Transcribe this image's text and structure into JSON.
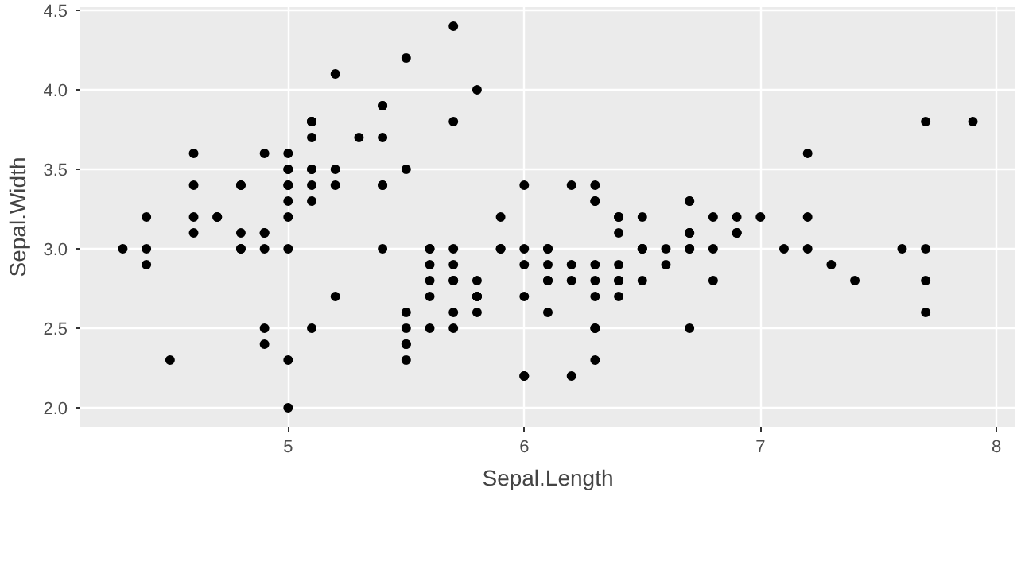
{
  "chart_data": {
    "type": "scatter",
    "xlabel": "Sepal.Length",
    "ylabel": "Sepal.Width",
    "x": [
      5.1,
      4.9,
      4.7,
      4.6,
      5.0,
      5.4,
      4.6,
      5.0,
      4.4,
      4.9,
      5.4,
      4.8,
      4.8,
      4.3,
      5.8,
      5.7,
      5.4,
      5.1,
      5.7,
      5.1,
      5.4,
      5.1,
      4.6,
      5.1,
      4.8,
      5.0,
      5.0,
      5.2,
      5.2,
      4.7,
      4.8,
      5.4,
      5.2,
      5.5,
      4.9,
      5.0,
      5.5,
      4.9,
      4.4,
      5.1,
      5.0,
      4.5,
      4.4,
      5.0,
      5.1,
      4.8,
      5.1,
      4.6,
      5.3,
      5.0,
      7.0,
      6.4,
      6.9,
      5.5,
      6.5,
      5.7,
      6.3,
      4.9,
      6.6,
      5.2,
      5.0,
      5.9,
      6.0,
      6.1,
      5.6,
      6.7,
      5.6,
      5.8,
      6.2,
      5.6,
      5.9,
      6.1,
      6.3,
      6.1,
      6.4,
      6.6,
      6.8,
      6.7,
      6.0,
      5.7,
      5.5,
      5.5,
      5.8,
      6.0,
      5.4,
      6.0,
      6.7,
      6.3,
      5.6,
      5.5,
      5.5,
      6.1,
      5.8,
      5.0,
      5.6,
      5.7,
      5.7,
      6.2,
      5.1,
      5.7,
      6.3,
      5.8,
      7.1,
      6.3,
      6.5,
      7.6,
      4.9,
      7.3,
      6.7,
      7.2,
      6.5,
      6.4,
      6.8,
      5.7,
      5.8,
      6.4,
      6.5,
      7.7,
      7.7,
      6.0,
      6.9,
      5.6,
      7.7,
      6.3,
      6.7,
      7.2,
      6.2,
      6.1,
      6.4,
      7.2,
      7.4,
      7.9,
      6.4,
      6.3,
      6.1,
      7.7,
      6.3,
      6.4,
      6.0,
      6.9,
      6.7,
      6.9,
      5.8,
      6.8,
      6.7,
      6.7,
      6.3,
      6.5,
      6.2,
      5.9
    ],
    "values": [
      3.5,
      3.0,
      3.2,
      3.1,
      3.6,
      3.9,
      3.4,
      3.4,
      2.9,
      3.1,
      3.7,
      3.4,
      3.0,
      3.0,
      4.0,
      4.4,
      3.9,
      3.5,
      3.8,
      3.8,
      3.4,
      3.7,
      3.6,
      3.3,
      3.4,
      3.0,
      3.4,
      3.5,
      3.4,
      3.2,
      3.1,
      3.4,
      4.1,
      4.2,
      3.1,
      3.2,
      3.5,
      3.6,
      3.0,
      3.4,
      3.5,
      2.3,
      3.2,
      3.5,
      3.8,
      3.0,
      3.8,
      3.2,
      3.7,
      3.3,
      3.2,
      3.2,
      3.1,
      2.3,
      2.8,
      2.8,
      3.3,
      2.4,
      2.9,
      2.7,
      2.0,
      3.0,
      2.2,
      2.9,
      2.9,
      3.1,
      3.0,
      2.7,
      2.2,
      2.5,
      3.2,
      2.8,
      2.5,
      2.8,
      2.9,
      3.0,
      2.8,
      3.0,
      2.9,
      2.6,
      2.4,
      2.4,
      2.7,
      2.7,
      3.0,
      3.4,
      3.1,
      2.3,
      3.0,
      2.5,
      2.6,
      3.0,
      2.6,
      2.3,
      2.7,
      3.0,
      2.9,
      2.9,
      2.5,
      2.8,
      3.3,
      2.7,
      3.0,
      2.9,
      3.0,
      3.0,
      2.5,
      2.9,
      2.5,
      3.6,
      3.2,
      2.7,
      3.0,
      2.5,
      2.8,
      3.2,
      3.0,
      3.8,
      2.6,
      2.2,
      3.2,
      2.8,
      2.8,
      2.7,
      3.3,
      3.2,
      2.8,
      3.0,
      2.8,
      3.0,
      2.8,
      3.8,
      2.8,
      2.8,
      2.6,
      3.0,
      3.4,
      3.1,
      3.0,
      3.1,
      3.1,
      3.1,
      2.7,
      3.2,
      3.3,
      3.0,
      2.5,
      3.0,
      3.4,
      3.0
    ],
    "color": "#000000",
    "marker": "circle",
    "xlim": [
      4.12,
      8.08
    ],
    "xticks": [
      5,
      6,
      7,
      8
    ],
    "ylim": [
      1.88,
      4.52
    ],
    "yticks": [
      {
        "value": 2.0,
        "label": "2.0"
      },
      {
        "value": 2.5,
        "label": "2.5"
      },
      {
        "value": 3.0,
        "label": "3.0"
      },
      {
        "value": 3.5,
        "label": "3.5"
      },
      {
        "value": 4.0,
        "label": "4.0"
      },
      {
        "value": 4.5,
        "label": "4.5"
      }
    ],
    "grid": true
  }
}
